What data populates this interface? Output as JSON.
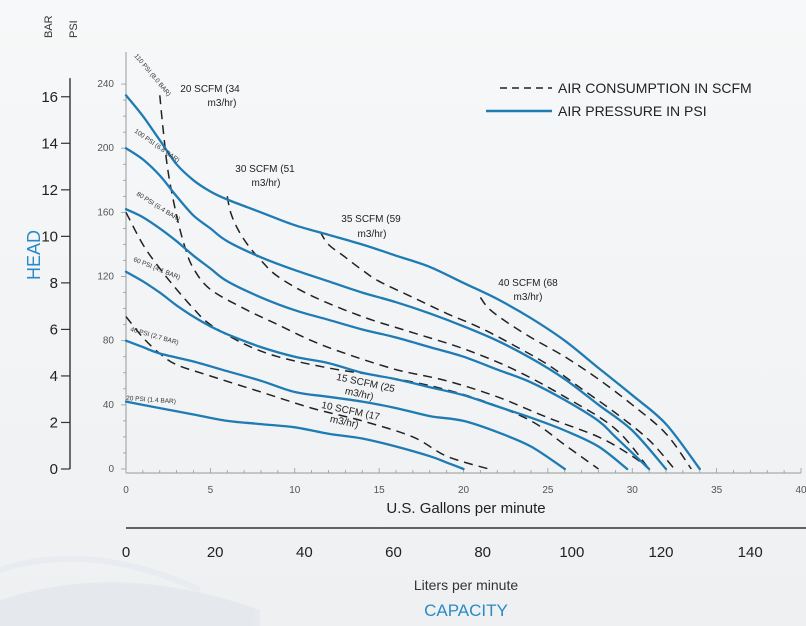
{
  "chart_data": {
    "type": "line",
    "axes": {
      "psi_axis": {
        "label": "PSI",
        "ticks": [
          0,
          40,
          80,
          120,
          160,
          200,
          240
        ],
        "range": [
          0,
          255
        ]
      },
      "bar_axis": {
        "label": "BAR",
        "ticks": [
          0,
          2,
          4,
          6,
          8,
          10,
          12,
          14,
          16
        ],
        "range": [
          0,
          17.58
        ]
      },
      "head_label": "HEAD",
      "gpm_axis": {
        "label": "U.S. Gallons per minute",
        "ticks": [
          0,
          5,
          10,
          15,
          20,
          25,
          30,
          35,
          40
        ],
        "range": [
          0,
          40
        ]
      },
      "lpm_axis": {
        "label": "Liters per minute",
        "ticks": [
          0,
          20,
          40,
          60,
          80,
          100,
          120,
          140
        ],
        "range": [
          0,
          151.4
        ]
      },
      "capacity_label": "CAPACITY"
    },
    "legend": {
      "placement": "top-right",
      "entries": [
        {
          "label": "AIR CONSUMPTION IN SCFM",
          "style": "dashed",
          "color": "#222222"
        },
        {
          "label": "AIR PRESSURE IN PSI",
          "style": "solid",
          "color": "#1f7bb3"
        }
      ]
    },
    "pressure_curves": [
      {
        "name": "110 PSI (8.0 BAR)",
        "points": [
          [
            0,
            233
          ],
          [
            1,
            220
          ],
          [
            2,
            205
          ],
          [
            3,
            190
          ],
          [
            4,
            180
          ],
          [
            5,
            173
          ],
          [
            6,
            168
          ],
          [
            8,
            160
          ],
          [
            10,
            152
          ],
          [
            12,
            146
          ],
          [
            14,
            140
          ],
          [
            16,
            133
          ],
          [
            18,
            126
          ],
          [
            20,
            116
          ],
          [
            22,
            106
          ],
          [
            24,
            94
          ],
          [
            26,
            80
          ],
          [
            28,
            63
          ],
          [
            30,
            46
          ],
          [
            32,
            28
          ],
          [
            34,
            0
          ]
        ]
      },
      {
        "name": "100 PSI (6.8 BAR)",
        "points": [
          [
            0,
            200
          ],
          [
            1,
            193
          ],
          [
            2,
            183
          ],
          [
            3,
            170
          ],
          [
            4,
            158
          ],
          [
            5,
            150
          ],
          [
            6,
            142
          ],
          [
            8,
            132
          ],
          [
            10,
            124
          ],
          [
            12,
            117
          ],
          [
            14,
            110
          ],
          [
            16,
            104
          ],
          [
            18,
            97
          ],
          [
            20,
            89
          ],
          [
            22,
            80
          ],
          [
            24,
            69
          ],
          [
            26,
            56
          ],
          [
            28,
            40
          ],
          [
            30,
            24
          ],
          [
            32,
            0
          ]
        ]
      },
      {
        "name": "80 PSI (6.4 BAR)",
        "points": [
          [
            0,
            162
          ],
          [
            1,
            157
          ],
          [
            2,
            150
          ],
          [
            3,
            142
          ],
          [
            4,
            133
          ],
          [
            5,
            125
          ],
          [
            6,
            117
          ],
          [
            8,
            107
          ],
          [
            10,
            99
          ],
          [
            12,
            93
          ],
          [
            14,
            87
          ],
          [
            16,
            82
          ],
          [
            18,
            76
          ],
          [
            20,
            70
          ],
          [
            22,
            62
          ],
          [
            24,
            54
          ],
          [
            26,
            43
          ],
          [
            28,
            30
          ],
          [
            29,
            20
          ],
          [
            31,
            0
          ]
        ]
      },
      {
        "name": "60 PSI (4.1 BAR)",
        "points": [
          [
            0,
            123
          ],
          [
            1,
            117
          ],
          [
            2,
            110
          ],
          [
            3,
            102
          ],
          [
            4,
            95
          ],
          [
            5,
            89
          ],
          [
            6,
            84
          ],
          [
            8,
            76
          ],
          [
            10,
            70
          ],
          [
            12,
            66
          ],
          [
            14,
            60
          ],
          [
            16,
            56
          ],
          [
            18,
            51
          ],
          [
            20,
            46
          ],
          [
            22,
            39
          ],
          [
            24,
            32
          ],
          [
            26,
            24
          ],
          [
            28,
            14
          ],
          [
            29.7,
            0
          ]
        ]
      },
      {
        "name": "40 PSI (2.7 BAR)",
        "points": [
          [
            0,
            80
          ],
          [
            1,
            76
          ],
          [
            2,
            72
          ],
          [
            4,
            67
          ],
          [
            6,
            61
          ],
          [
            8,
            55
          ],
          [
            10,
            48
          ],
          [
            12,
            45
          ],
          [
            14,
            42
          ],
          [
            16,
            38
          ],
          [
            18,
            33
          ],
          [
            20,
            30
          ],
          [
            22,
            23
          ],
          [
            24,
            14
          ],
          [
            26,
            0
          ]
        ]
      },
      {
        "name": "20 PSI (1.4 BAR)",
        "points": [
          [
            0,
            42
          ],
          [
            2,
            38
          ],
          [
            4,
            34
          ],
          [
            6,
            30
          ],
          [
            8,
            28
          ],
          [
            10,
            26
          ],
          [
            12,
            22
          ],
          [
            14,
            19
          ],
          [
            16,
            14
          ],
          [
            18,
            8
          ],
          [
            19,
            4
          ],
          [
            20,
            0
          ]
        ]
      }
    ],
    "scfm_curves": [
      {
        "name": "10 SCFM (17 m3/hr)",
        "points": [
          [
            0,
            95
          ],
          [
            1,
            82
          ],
          [
            2,
            72
          ],
          [
            3,
            65
          ],
          [
            5,
            58
          ],
          [
            8,
            48
          ],
          [
            11,
            38
          ],
          [
            14,
            30
          ],
          [
            17,
            20
          ],
          [
            19,
            8
          ],
          [
            21.5,
            0
          ]
        ]
      },
      {
        "name": "15 SCFM (25 m3/hr)",
        "points": [
          [
            0,
            160
          ],
          [
            1,
            140
          ],
          [
            2,
            125
          ],
          [
            3,
            112
          ],
          [
            4,
            100
          ],
          [
            5,
            90
          ],
          [
            7,
            78
          ],
          [
            9,
            70
          ],
          [
            12,
            63
          ],
          [
            15,
            58
          ],
          [
            18,
            52
          ],
          [
            21,
            43
          ],
          [
            24,
            30
          ],
          [
            26,
            15
          ],
          [
            28,
            0
          ]
        ]
      },
      {
        "name": "20 SCFM (34 m3/hr)",
        "points": [
          [
            2,
            233
          ],
          [
            2.2,
            212
          ],
          [
            2.5,
            185
          ],
          [
            3,
            158
          ],
          [
            3.5,
            138
          ],
          [
            4,
            125
          ],
          [
            5,
            112
          ],
          [
            7,
            100
          ],
          [
            9,
            90
          ],
          [
            11,
            80
          ],
          [
            13,
            72
          ],
          [
            16,
            62
          ],
          [
            19,
            55
          ],
          [
            22,
            45
          ],
          [
            25,
            32
          ],
          [
            28,
            20
          ],
          [
            30,
            8
          ],
          [
            31,
            0
          ]
        ]
      },
      {
        "name": "30 SCFM (51 m3/hr)",
        "points": [
          [
            6,
            170
          ],
          [
            6.2,
            160
          ],
          [
            6.6,
            150
          ],
          [
            7.2,
            140
          ],
          [
            8,
            130
          ],
          [
            9,
            120
          ],
          [
            11,
            108
          ],
          [
            14,
            95
          ],
          [
            17,
            85
          ],
          [
            20,
            75
          ],
          [
            23,
            62
          ],
          [
            26,
            45
          ],
          [
            29,
            25
          ],
          [
            31,
            0
          ]
        ]
      },
      {
        "name": "35 SCFM (59 m3/hr)",
        "points": [
          [
            11.5,
            148
          ],
          [
            12,
            140
          ],
          [
            13,
            132
          ],
          [
            14,
            124
          ],
          [
            15,
            117
          ],
          [
            17,
            107
          ],
          [
            19,
            97
          ],
          [
            21,
            88
          ],
          [
            23,
            77
          ],
          [
            25,
            65
          ],
          [
            27,
            50
          ],
          [
            29,
            35
          ],
          [
            31,
            18
          ],
          [
            32.5,
            0
          ]
        ]
      },
      {
        "name": "40 SCFM (68 m3/hr)",
        "points": [
          [
            21,
            107
          ],
          [
            21.5,
            100
          ],
          [
            22.5,
            92
          ],
          [
            24,
            82
          ],
          [
            26,
            70
          ],
          [
            28,
            56
          ],
          [
            30,
            40
          ],
          [
            32,
            22
          ],
          [
            33.5,
            0
          ]
        ]
      }
    ],
    "annotations": {
      "pressure_labels": [
        "110 PSI (8.0 BAR)",
        "100 PSI (6.8 BAR)",
        "80 PSI (6.4 BAR)",
        "60 PSI (4.1 BAR)",
        "40 PSI (2.7 BAR)",
        "20 PSI (1.4 BAR)"
      ],
      "scfm_labels": [
        {
          "line1": "20 SCFM (34",
          "line2": "m3/hr)"
        },
        {
          "line1": "30 SCFM (51",
          "line2": "m3/hr)"
        },
        {
          "line1": "35 SCFM (59",
          "line2": "m3/hr)"
        },
        {
          "line1": "40 SCFM (68",
          "line2": "m3/hr)"
        },
        {
          "line1": "15 SCFM (25",
          "line2": "m3/hr)"
        },
        {
          "line1": "10 SCFM (17",
          "line2": "m3/hr)"
        }
      ]
    },
    "colors": {
      "pressure_line": "#1f7bb3",
      "scfm_line": "#222222",
      "title_blue": "#2a8bc4",
      "axis": "#333333"
    },
    "grid": false
  }
}
